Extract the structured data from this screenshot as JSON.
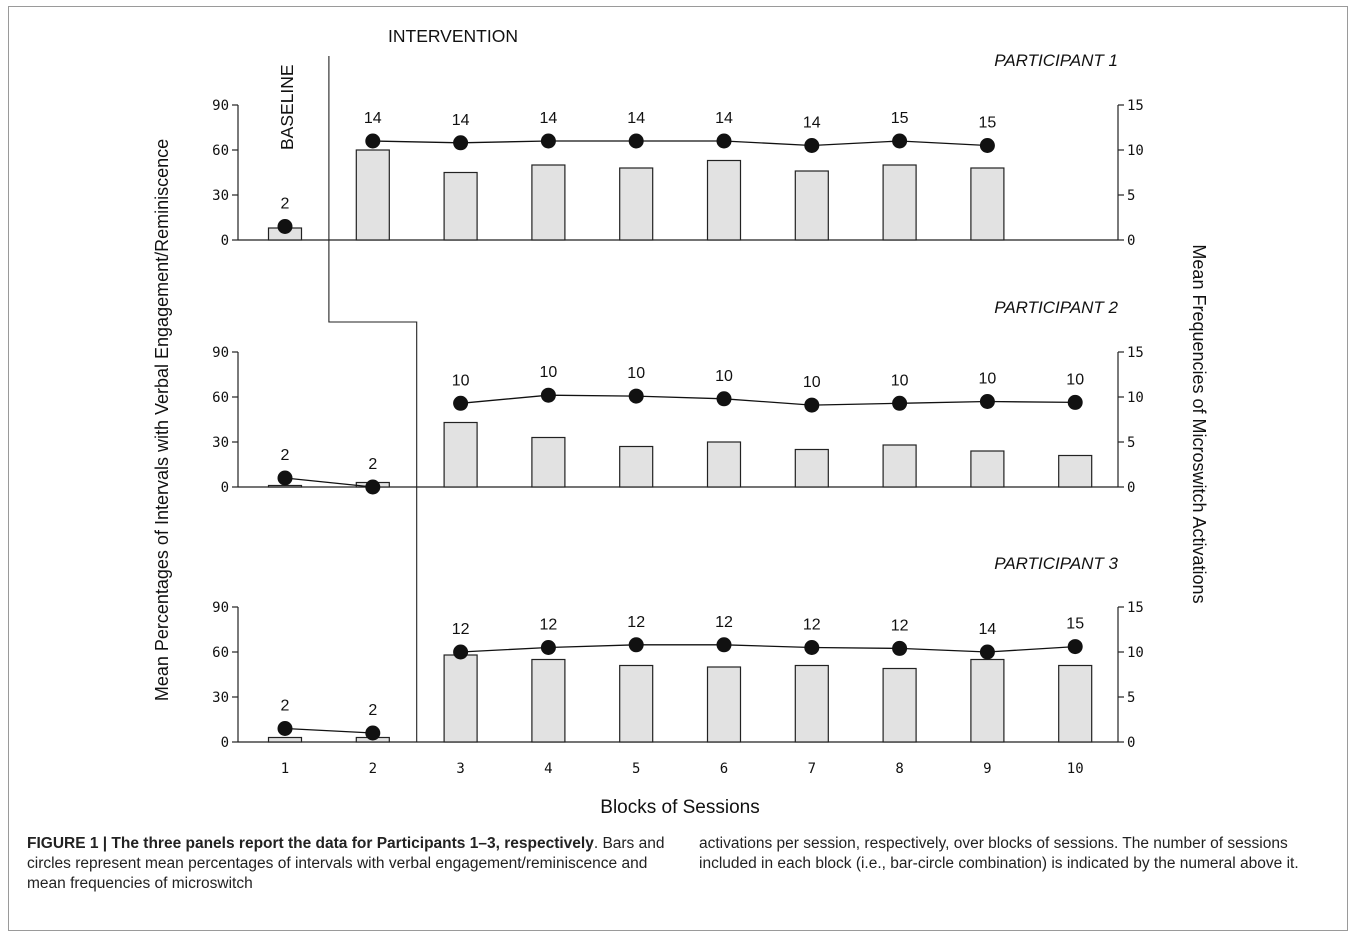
{
  "chart_data": {
    "type": "bar",
    "categories": [
      "1",
      "2",
      "3",
      "4",
      "5",
      "6",
      "7",
      "8",
      "9",
      "10"
    ],
    "xlabel": "Blocks of Sessions",
    "ylabel_left": "Mean Percentages of Intervals with Verbal Engagement/Reminiscence",
    "ylabel_right": "Mean Frequencies of Microswitch Activations",
    "ylim_left": [
      0,
      90
    ],
    "yticks_left": [
      0,
      30,
      60,
      90
    ],
    "ylim_right": [
      0,
      15
    ],
    "yticks_right": [
      0,
      5,
      10,
      15
    ],
    "phase_labels": {
      "baseline": "BASELINE",
      "intervention": "INTERVENTION"
    },
    "grid": false,
    "colors": {
      "bar_fill": "#e2e2e2",
      "bar_stroke": "#222222",
      "circle": "#111111",
      "axis": "#222222"
    },
    "panels": [
      {
        "title": "PARTICIPANT 1",
        "blocks": [
          1,
          2,
          3,
          4,
          5,
          6,
          7,
          8,
          9
        ],
        "bars": [
          8,
          60,
          45,
          50,
          48,
          53,
          46,
          50,
          48
        ],
        "circles": [
          1.5,
          11,
          10.8,
          11,
          11,
          11,
          10.5,
          11,
          10.5
        ],
        "sessions": [
          "2",
          "14",
          "14",
          "14",
          "14",
          "14",
          "14",
          "15",
          "15"
        ],
        "line_segments": [
          [
            1
          ],
          [
            2,
            3,
            4,
            5,
            6,
            7,
            8,
            9
          ]
        ]
      },
      {
        "title": "PARTICIPANT 2",
        "blocks": [
          1,
          2,
          3,
          4,
          5,
          6,
          7,
          8,
          9,
          10
        ],
        "bars": [
          1,
          3,
          43,
          33,
          27,
          30,
          25,
          28,
          24,
          21
        ],
        "circles": [
          1,
          0,
          9.3,
          10.2,
          10.1,
          9.8,
          9.1,
          9.3,
          9.5,
          9.4
        ],
        "sessions": [
          "2",
          "2",
          "10",
          "10",
          "10",
          "10",
          "10",
          "10",
          "10",
          "10"
        ],
        "line_segments": [
          [
            1,
            2
          ],
          [
            3,
            4,
            5,
            6,
            7,
            8,
            9,
            10
          ]
        ]
      },
      {
        "title": "PARTICIPANT 3",
        "blocks": [
          1,
          2,
          3,
          4,
          5,
          6,
          7,
          8,
          9,
          10
        ],
        "bars": [
          3,
          3,
          58,
          55,
          51,
          50,
          51,
          49,
          55,
          51
        ],
        "circles": [
          1.5,
          1,
          10,
          10.5,
          10.8,
          10.8,
          10.5,
          10.4,
          10,
          10.6
        ],
        "sessions": [
          "2",
          "2",
          "12",
          "12",
          "12",
          "12",
          "12",
          "12",
          "14",
          "15"
        ],
        "line_segments": [
          [
            1,
            2
          ],
          [
            3,
            4,
            5,
            6,
            7,
            8,
            9,
            10
          ]
        ]
      }
    ]
  },
  "caption": {
    "label": "FIGURE 1 | The three panels report the data for Participants 1–3, respectively",
    "text_left": ". Bars and circles represent mean percentages of intervals with verbal engagement/reminiscence and mean frequencies of microswitch",
    "text_right": "activations per session, respectively, over blocks of sessions. The number of sessions included in each block (i.e., bar-circle combination) is indicated by the numeral above it."
  }
}
